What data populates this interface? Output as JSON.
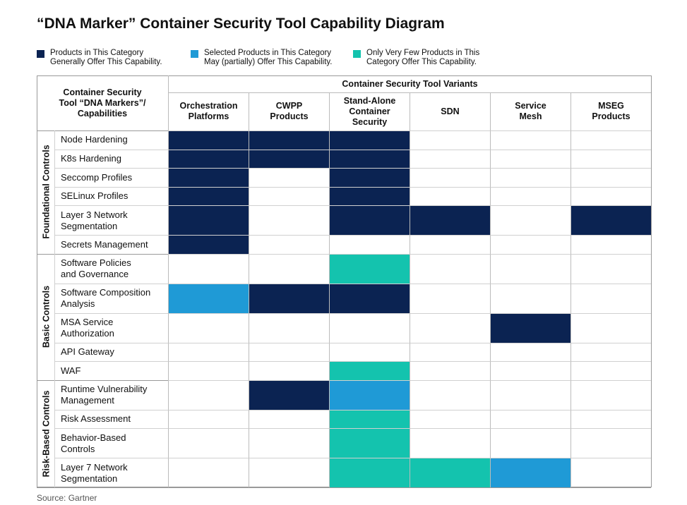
{
  "title": "“DNA Marker” Container Security Tool Capability Diagram",
  "legend": [
    {
      "color": "#0b2352",
      "lines": [
        "Products in This Category",
        "Generally Offer This Capability."
      ]
    },
    {
      "color": "#1f9ad6",
      "lines": [
        "Selected Products in This Category",
        "May (partially) Offer This Capability."
      ]
    },
    {
      "color": "#14c3ae",
      "lines": [
        "Only Very Few Products in This",
        "Category Offer This Capability."
      ]
    }
  ],
  "table": {
    "corner_header": [
      "Container Security",
      "Tool “DNA Markers”/",
      "Capabilities"
    ],
    "variants_header": "Container Security Tool Variants",
    "columns": [
      [
        "Orchestration",
        "Platforms"
      ],
      [
        "CWPP",
        "Products"
      ],
      [
        "Stand-Alone",
        "Container",
        "Security"
      ],
      [
        "SDN"
      ],
      [
        "Service",
        "Mesh"
      ],
      [
        "MSEG",
        "Products"
      ]
    ],
    "groups": [
      {
        "label": "Foundational Controls",
        "rows": [
          {
            "lines": [
              "Node Hardening"
            ],
            "cells": [
              0,
              0,
              0,
              null,
              null,
              null
            ]
          },
          {
            "lines": [
              "K8s Hardening"
            ],
            "cells": [
              0,
              0,
              0,
              null,
              null,
              null
            ]
          },
          {
            "lines": [
              "Seccomp Profiles"
            ],
            "cells": [
              0,
              null,
              0,
              null,
              null,
              null
            ]
          },
          {
            "lines": [
              "SELinux Profiles"
            ],
            "cells": [
              0,
              null,
              0,
              null,
              null,
              null
            ]
          },
          {
            "lines": [
              "Layer 3 Network",
              "Segmentation"
            ],
            "cells": [
              0,
              null,
              0,
              0,
              null,
              0
            ]
          },
          {
            "lines": [
              "Secrets Management"
            ],
            "cells": [
              0,
              null,
              null,
              null,
              null,
              null
            ]
          }
        ]
      },
      {
        "label": "Basic Controls",
        "rows": [
          {
            "lines": [
              "Software Policies",
              "and Governance"
            ],
            "cells": [
              null,
              null,
              2,
              null,
              null,
              null
            ]
          },
          {
            "lines": [
              "Software Composition",
              "Analysis"
            ],
            "cells": [
              1,
              0,
              0,
              null,
              null,
              null
            ]
          },
          {
            "lines": [
              "MSA Service",
              "Authorization"
            ],
            "cells": [
              null,
              null,
              null,
              null,
              0,
              null
            ]
          },
          {
            "lines": [
              "API Gateway"
            ],
            "cells": [
              null,
              null,
              null,
              null,
              null,
              null
            ]
          },
          {
            "lines": [
              "WAF"
            ],
            "cells": [
              null,
              null,
              2,
              null,
              null,
              null
            ]
          }
        ]
      },
      {
        "label": "Risk-Based Controls",
        "rows": [
          {
            "lines": [
              "Runtime Vulnerability",
              "Management"
            ],
            "cells": [
              null,
              0,
              1,
              null,
              null,
              null
            ]
          },
          {
            "lines": [
              "Risk Assessment"
            ],
            "cells": [
              null,
              null,
              2,
              null,
              null,
              null
            ]
          },
          {
            "lines": [
              "Behavior-Based",
              "Controls"
            ],
            "cells": [
              null,
              null,
              2,
              null,
              null,
              null
            ]
          },
          {
            "lines": [
              "Layer 7 Network",
              "Segmentation"
            ],
            "cells": [
              null,
              null,
              2,
              2,
              1,
              null
            ]
          }
        ]
      }
    ]
  },
  "source": "Source: Gartner"
}
